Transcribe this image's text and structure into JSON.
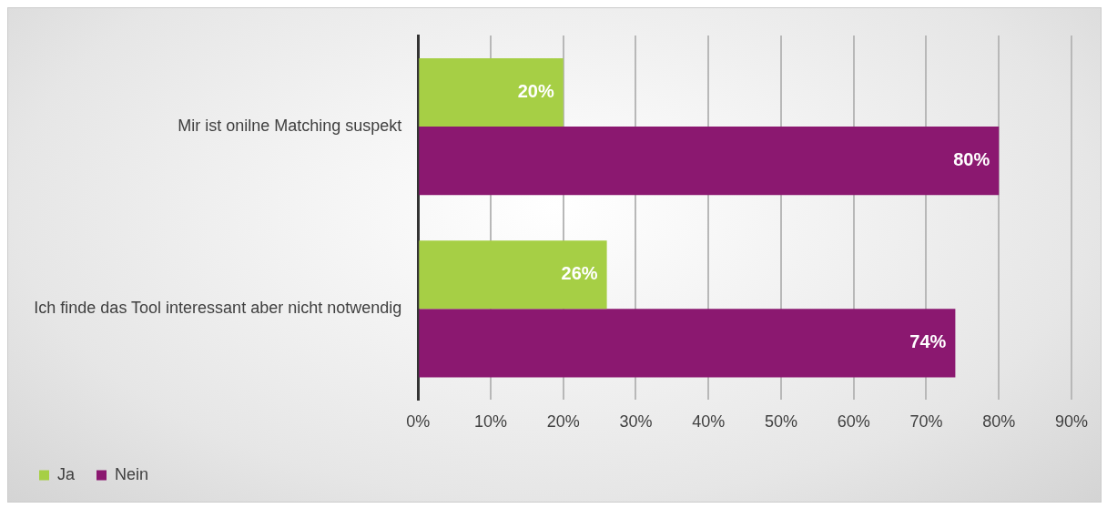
{
  "chart_data": {
    "type": "bar",
    "orientation": "horizontal",
    "categories": [
      "Mir ist onilne Matching suspekt",
      "Ich finde das Tool interessant aber nicht notwendig"
    ],
    "series": [
      {
        "name": "Ja",
        "color": "#a6cf45",
        "values": [
          20,
          26
        ],
        "value_labels": [
          "20%",
          "26%"
        ]
      },
      {
        "name": "Nein",
        "color": "#8b1870",
        "values": [
          80,
          74
        ],
        "value_labels": [
          "80%",
          "74%"
        ]
      }
    ],
    "xlim": [
      0,
      90
    ],
    "xticks": [
      {
        "value": 0,
        "label": "0%"
      },
      {
        "value": 10,
        "label": "10%"
      },
      {
        "value": 20,
        "label": "20%"
      },
      {
        "value": 30,
        "label": "30%"
      },
      {
        "value": 40,
        "label": "40%"
      },
      {
        "value": 50,
        "label": "50%"
      },
      {
        "value": 60,
        "label": "60%"
      },
      {
        "value": 70,
        "label": "70%"
      },
      {
        "value": 80,
        "label": "80%"
      },
      {
        "value": 90,
        "label": "90%"
      }
    ],
    "grid": "x",
    "legend": "bottom left"
  }
}
